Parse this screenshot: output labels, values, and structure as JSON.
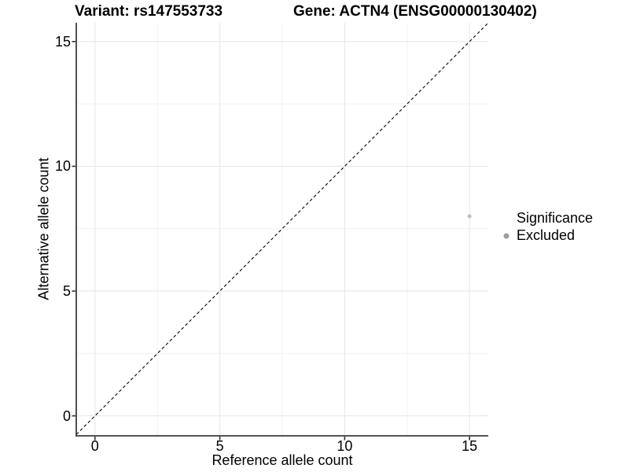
{
  "chart_data": {
    "type": "scatter",
    "title_left": "Variant: rs147553733",
    "title_right": "Gene: ACTN4 (ENSG00000130402)",
    "xlabel": "Reference allele count",
    "ylabel": "Alternative allele count",
    "xlim": [
      -0.75,
      15.75
    ],
    "ylim": [
      -0.8,
      15.75
    ],
    "x_ticks": [
      0,
      5,
      10,
      15
    ],
    "y_ticks": [
      0,
      5,
      10,
      15
    ],
    "x_minor_ticks": [
      2.5,
      7.5,
      12.5
    ],
    "y_minor_ticks": [
      2.5,
      7.5,
      12.5
    ],
    "grid": true,
    "identity_line": {
      "slope": 1,
      "intercept": 0,
      "style": "dashed"
    },
    "points": [
      {
        "x": 15,
        "y": 8,
        "series": "Excluded"
      }
    ],
    "legend": {
      "title": "Significance",
      "position": "right",
      "entries": [
        {
          "label": "Excluded",
          "color": "#9e9e9e"
        }
      ]
    },
    "colors": {
      "point": "#c2c2c2",
      "identity_line": "#1a1a1a",
      "grid_major": "#e6e6e6",
      "grid_minor": "#f2f2f2",
      "axis_line": "#3c3c3c",
      "tick_mark": "#333333",
      "text": "#000000",
      "background": "#ffffff"
    }
  }
}
